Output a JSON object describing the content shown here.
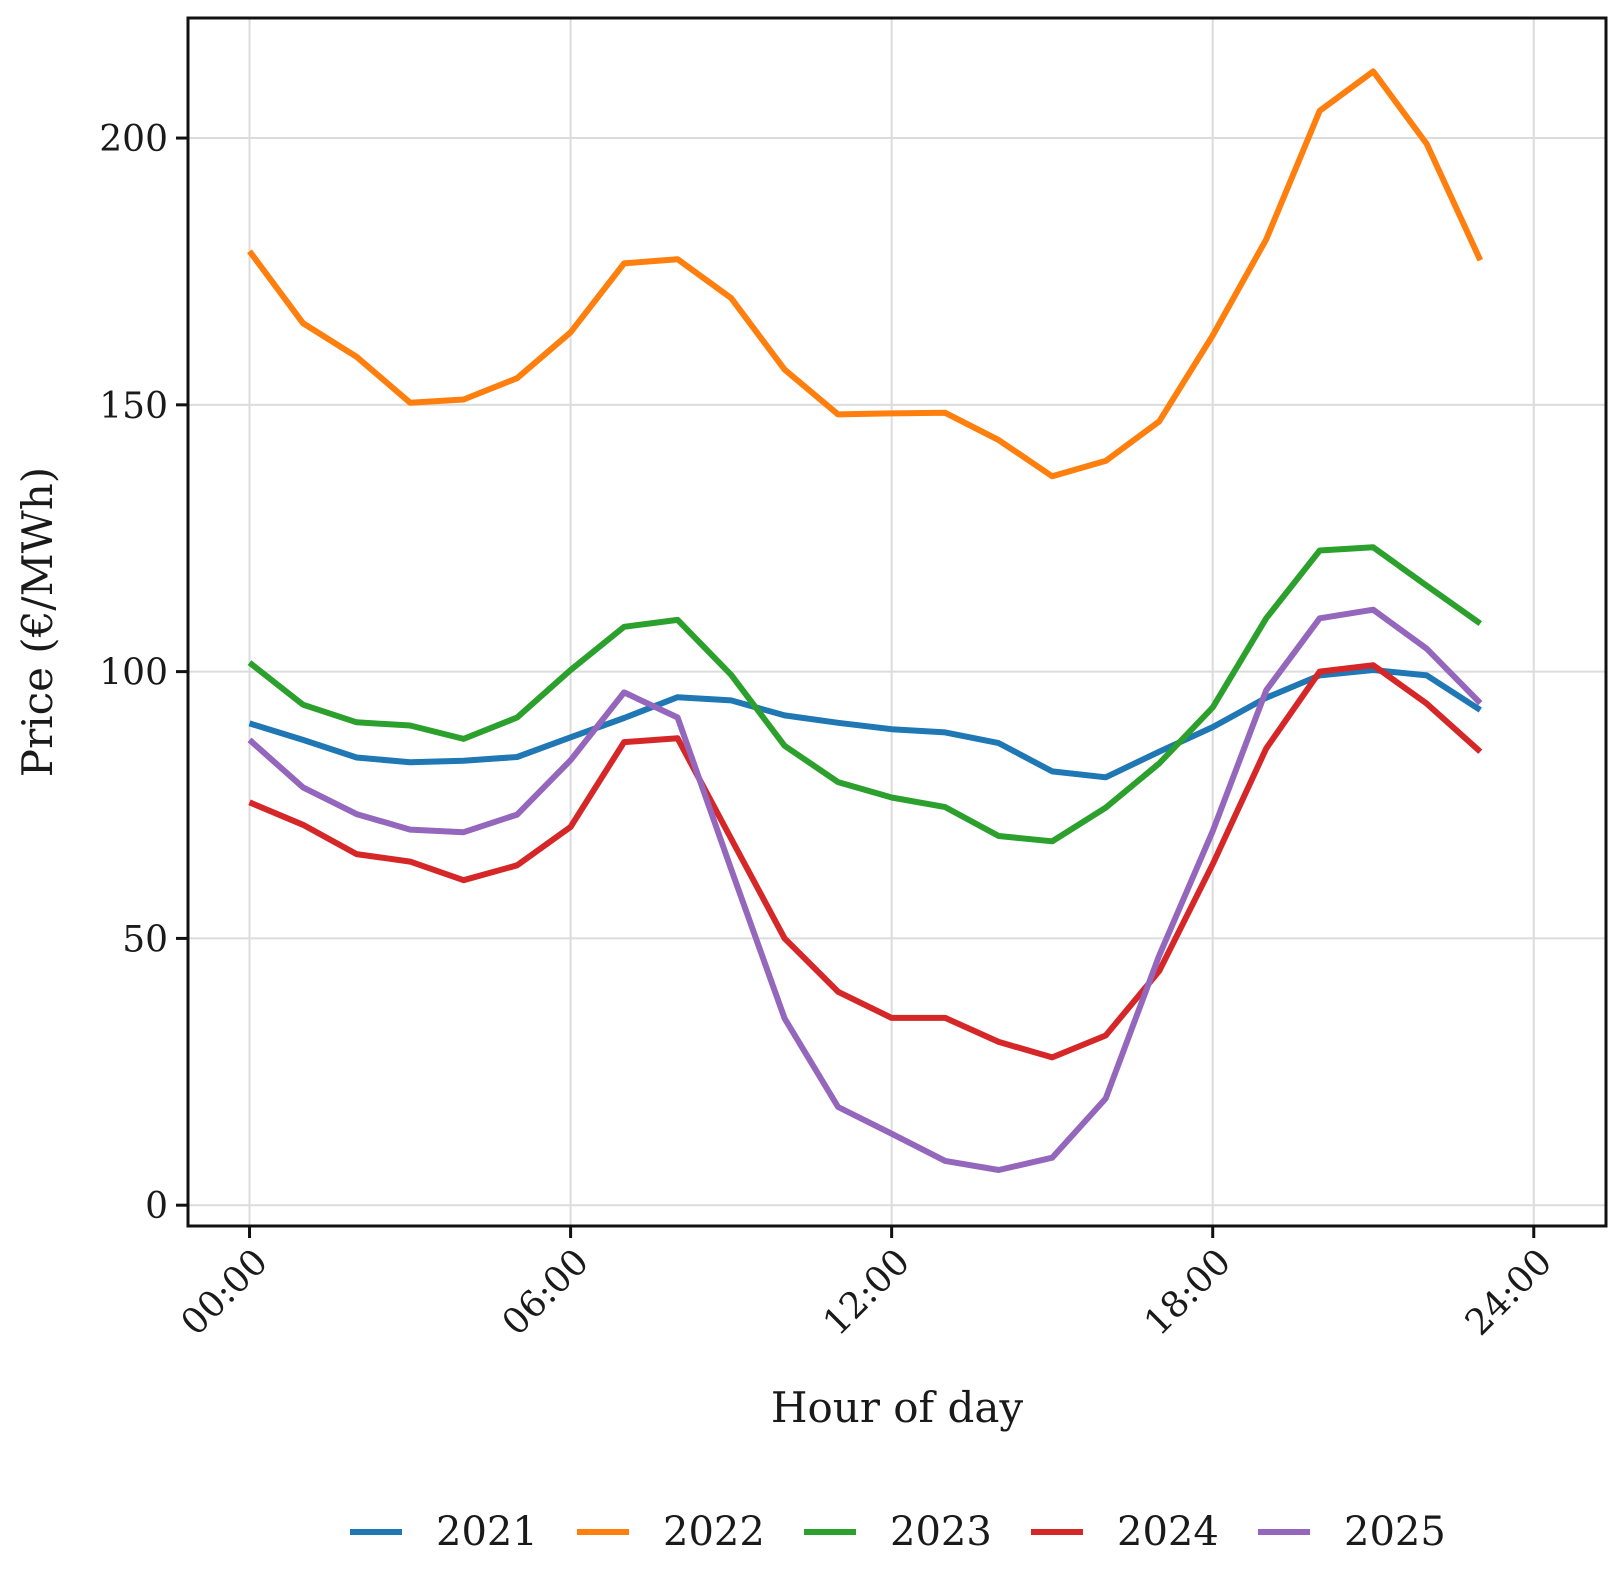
{
  "chart_data": {
    "type": "line",
    "title": "",
    "xlabel": "Hour of day",
    "ylabel": "Price (€/MWh)",
    "x": [
      0,
      1,
      2,
      3,
      4,
      5,
      6,
      7,
      8,
      9,
      10,
      11,
      12,
      13,
      14,
      15,
      16,
      17,
      18,
      19,
      20,
      21,
      22,
      23
    ],
    "xlim": [
      -1.15,
      25.35
    ],
    "ylim": [
      -3.9,
      222.5
    ],
    "xticks": [
      0,
      6,
      12,
      18,
      24
    ],
    "xtick_labels": [
      "00:00",
      "06:00",
      "12:00",
      "18:00",
      "24:00"
    ],
    "yticks": [
      0,
      50,
      100,
      150,
      200
    ],
    "ytick_labels": [
      "0",
      "50",
      "100",
      "150",
      "200"
    ],
    "grid": true,
    "legend_position": "bottom-center",
    "series": [
      {
        "name": "2021",
        "color": "#1f77b4",
        "values": [
          90.3,
          87.2,
          83.9,
          83.0,
          83.3,
          84.0,
          87.7,
          91.3,
          95.2,
          94.6,
          91.8,
          90.4,
          89.2,
          88.6,
          86.6,
          81.3,
          80.2,
          85.0,
          89.6,
          95.1,
          99.3,
          100.3,
          99.3,
          92.8
        ]
      },
      {
        "name": "2022",
        "color": "#ff7f0e",
        "values": [
          178.8,
          165.3,
          159.0,
          150.4,
          151.0,
          155.0,
          163.6,
          176.5,
          177.3,
          170.0,
          156.6,
          148.2,
          148.4,
          148.5,
          143.4,
          136.6,
          139.5,
          146.9,
          163.0,
          181.0,
          205.1,
          212.5,
          198.9,
          177.1
        ]
      },
      {
        "name": "2023",
        "color": "#2ca02c",
        "values": [
          101.7,
          93.8,
          90.5,
          89.9,
          87.4,
          91.4,
          100.3,
          108.4,
          109.7,
          99.4,
          86.1,
          79.3,
          76.4,
          74.6,
          69.2,
          68.2,
          74.5,
          82.8,
          93.3,
          110.0,
          122.7,
          123.3,
          116.1,
          109.0
        ]
      },
      {
        "name": "2024",
        "color": "#d62728",
        "values": [
          75.5,
          71.3,
          65.8,
          64.4,
          60.9,
          63.7,
          70.9,
          86.8,
          87.5,
          68.7,
          50.0,
          40.0,
          35.1,
          35.1,
          30.6,
          27.7,
          31.8,
          43.9,
          63.9,
          85.6,
          100.0,
          101.2,
          94.0,
          85.0
        ]
      },
      {
        "name": "2025",
        "color": "#9467bd",
        "values": [
          87.2,
          78.3,
          73.3,
          70.4,
          69.9,
          73.2,
          83.4,
          96.1,
          91.4,
          63.0,
          35.0,
          18.4,
          13.4,
          8.3,
          6.6,
          8.9,
          20.0,
          46.8,
          70.1,
          96.5,
          110.0,
          111.6,
          104.3,
          94.1
        ]
      }
    ]
  }
}
